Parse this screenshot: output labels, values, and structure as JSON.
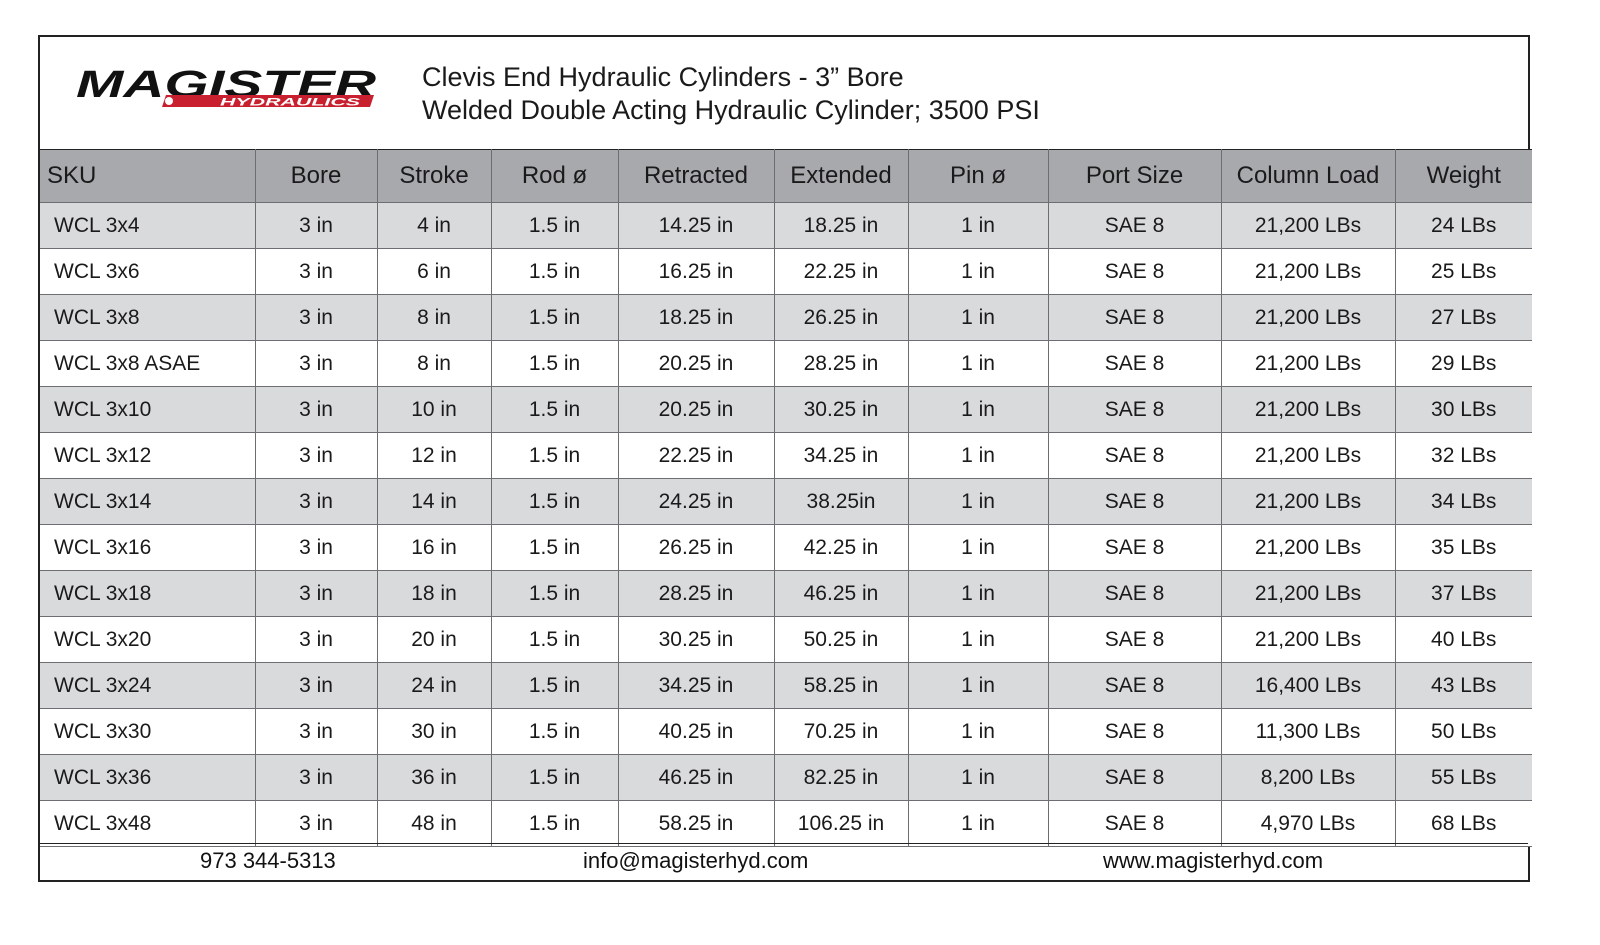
{
  "header": {
    "logo_text": "MAGISTER",
    "logo_subtext": "HYDRAULICS",
    "title_line1": "Clevis End Hydraulic Cylinders - 3” Bore",
    "title_line2": "Welded Double Acting Hydraulic Cylinder; 3500 PSI"
  },
  "colors": {
    "header_gray": "#a7a9ac",
    "stripe_gray": "#d9dadc",
    "logo_red": "#c8202f",
    "logo_black": "#111111"
  },
  "table": {
    "columns": [
      "SKU",
      "Bore",
      "Stroke",
      "Rod ø",
      "Retracted",
      "Extended",
      "Pin ø",
      "Port Size",
      "Column Load",
      "Weight"
    ],
    "rows": [
      [
        "WCL 3x4",
        "3 in",
        "4 in",
        "1.5 in",
        "14.25 in",
        "18.25 in",
        "1 in",
        "SAE 8",
        "21,200 LBs",
        "24 LBs"
      ],
      [
        "WCL 3x6",
        "3 in",
        "6 in",
        "1.5 in",
        "16.25 in",
        "22.25 in",
        "1 in",
        "SAE 8",
        "21,200 LBs",
        "25 LBs"
      ],
      [
        "WCL 3x8",
        "3 in",
        "8 in",
        "1.5 in",
        "18.25 in",
        "26.25 in",
        "1 in",
        "SAE 8",
        "21,200 LBs",
        "27 LBs"
      ],
      [
        "WCL 3x8 ASAE",
        "3 in",
        "8 in",
        "1.5 in",
        "20.25 in",
        "28.25 in",
        "1 in",
        "SAE 8",
        "21,200 LBs",
        "29 LBs"
      ],
      [
        "WCL 3x10",
        "3 in",
        "10 in",
        "1.5 in",
        "20.25 in",
        "30.25 in",
        "1 in",
        "SAE 8",
        "21,200 LBs",
        "30 LBs"
      ],
      [
        "WCL 3x12",
        "3 in",
        "12 in",
        "1.5 in",
        "22.25 in",
        "34.25 in",
        "1 in",
        "SAE 8",
        "21,200 LBs",
        "32 LBs"
      ],
      [
        "WCL 3x14",
        "3 in",
        "14 in",
        "1.5 in",
        "24.25 in",
        "38.25in",
        "1 in",
        "SAE 8",
        "21,200 LBs",
        "34 LBs"
      ],
      [
        "WCL 3x16",
        "3 in",
        "16 in",
        "1.5 in",
        "26.25 in",
        "42.25 in",
        "1 in",
        "SAE 8",
        "21,200 LBs",
        "35 LBs"
      ],
      [
        "WCL 3x18",
        "3 in",
        "18 in",
        "1.5 in",
        "28.25 in",
        "46.25 in",
        "1 in",
        "SAE 8",
        "21,200 LBs",
        "37 LBs"
      ],
      [
        "WCL 3x20",
        "3 in",
        "20 in",
        "1.5 in",
        "30.25 in",
        "50.25 in",
        "1 in",
        "SAE 8",
        "21,200 LBs",
        "40 LBs"
      ],
      [
        "WCL 3x24",
        "3 in",
        "24 in",
        "1.5 in",
        "34.25 in",
        "58.25 in",
        "1 in",
        "SAE 8",
        "16,400 LBs",
        "43 LBs"
      ],
      [
        "WCL 3x30",
        "3 in",
        "30 in",
        "1.5 in",
        "40.25 in",
        "70.25 in",
        "1 in",
        "SAE 8",
        "11,300 LBs",
        "50 LBs"
      ],
      [
        "WCL 3x36",
        "3 in",
        "36 in",
        "1.5 in",
        "46.25 in",
        "82.25 in",
        "1 in",
        "SAE 8",
        "8,200 LBs",
        "55 LBs"
      ],
      [
        "WCL 3x48",
        "3 in",
        "48 in",
        "1.5 in",
        "58.25 in",
        "106.25 in",
        "1 in",
        "SAE 8",
        "4,970 LBs",
        "68 LBs"
      ]
    ]
  },
  "footer": {
    "phone": "973 344-5313",
    "email": "info@magisterhyd.com",
    "website": "www.magisterhyd.com"
  }
}
